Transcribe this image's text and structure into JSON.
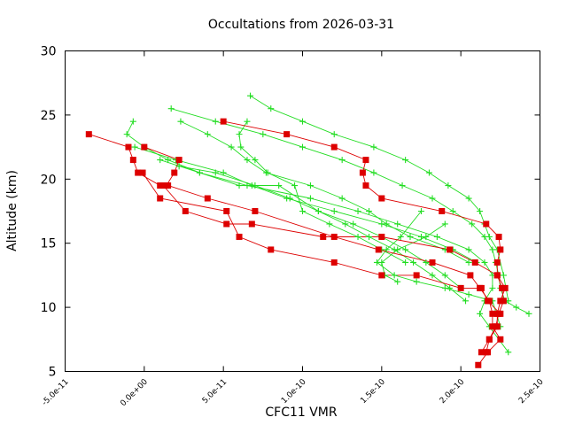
{
  "chart_data": {
    "type": "line",
    "title": "Occultations from 2026-03-31",
    "xlabel": "CFC11 VMR",
    "ylabel": "Altitude (km)",
    "xlim": [
      -5e-11,
      2.5e-10
    ],
    "ylim": [
      5,
      30
    ],
    "xticks": [
      -5e-11,
      0,
      5e-11,
      1e-10,
      1.5e-10,
      2e-10,
      2.5e-10
    ],
    "xtick_labels": [
      "-5.0e-11",
      "0.0e+00",
      "5.0e-11",
      "1.0e-10",
      "1.5e-10",
      "2.0e-10",
      "2.5e-10"
    ],
    "yticks": [
      5,
      10,
      15,
      20,
      25,
      30
    ],
    "ytick_labels": [
      "5",
      "10",
      "15",
      "20",
      "25",
      "30"
    ],
    "grid": false,
    "legend": "none",
    "colors": {
      "red_series": "#dd0000",
      "green_series": "#22dd22",
      "axes": "#000000"
    },
    "series": [
      {
        "name": "red-profile-1",
        "color": "red",
        "marker": "square",
        "x": [
          -3.5e-11,
          -1e-11,
          -7e-12,
          -4e-12,
          1e-11,
          1.5e-11,
          4e-11,
          7e-11,
          1.2e-10,
          1.48e-10,
          1.82e-10,
          2.06e-10,
          2.12e-10,
          2.18e-10,
          2.2e-10,
          2.2e-10,
          2.25e-10,
          2.17e-10,
          2.11e-10
        ],
        "y": [
          23.5,
          22.5,
          21.5,
          20.5,
          19.5,
          19.5,
          18.5,
          17.5,
          15.5,
          14.5,
          13.5,
          12.5,
          11.5,
          10.5,
          9.5,
          8.5,
          7.5,
          6.5,
          5.5
        ]
      },
      {
        "name": "red-profile-2",
        "color": "red",
        "marker": "square",
        "x": [
          0.0,
          2.2e-11,
          1.9e-11,
          1.4e-11,
          1.2e-11,
          2.6e-11,
          5.2e-11,
          6.8e-11,
          1.13e-10,
          1.5e-10,
          1.93e-10,
          2.09e-10,
          2.23e-10,
          2.28e-10,
          2.25e-10,
          2.23e-10,
          2.23e-10,
          2.18e-10,
          2.13e-10
        ],
        "y": [
          22.5,
          21.5,
          20.5,
          19.5,
          19.5,
          17.5,
          16.5,
          16.5,
          15.5,
          15.5,
          14.5,
          13.5,
          12.5,
          11.5,
          10.5,
          9.5,
          8.5,
          7.5,
          6.5
        ]
      },
      {
        "name": "red-profile-3",
        "color": "red",
        "marker": "square",
        "x": [
          5e-11,
          9e-11,
          1.2e-10,
          1.4e-10,
          1.38e-10,
          1.4e-10,
          1.5e-10,
          1.88e-10,
          2.16e-10,
          2.24e-10,
          2.25e-10,
          2.23e-10,
          2.23e-10,
          2.26e-10,
          2.27e-10,
          2.24e-10,
          2.22e-10,
          2.18e-10,
          2.16e-10
        ],
        "y": [
          24.5,
          23.5,
          22.5,
          21.5,
          20.5,
          19.5,
          18.5,
          17.5,
          16.5,
          15.5,
          14.5,
          13.5,
          12.5,
          11.5,
          10.5,
          9.5,
          8.5,
          7.5,
          6.5
        ]
      },
      {
        "name": "red-profile-4",
        "color": "red",
        "marker": "square",
        "x": [
          -1e-12,
          1e-11,
          5.2e-11,
          6e-11,
          8e-11,
          1.2e-10,
          1.5e-10,
          1.72e-10,
          2e-10,
          2.13e-10,
          2.17e-10,
          2.25e-10
        ],
        "y": [
          20.5,
          18.5,
          17.5,
          15.5,
          14.5,
          13.5,
          12.5,
          12.5,
          11.5,
          11.5,
          10.5,
          9.5
        ]
      },
      {
        "name": "green-profile-1",
        "color": "green",
        "marker": "plus",
        "x": [
          -7e-12,
          -1.1e-11,
          0.0,
          1.5e-11,
          3.5e-11,
          6.5e-11,
          1.05e-10,
          1.35e-10,
          1.6e-10,
          1.85e-10,
          2.05e-10,
          2.15e-10,
          2.2e-10,
          2.2e-10,
          2.15e-10,
          2.12e-10,
          2.18e-10,
          2.3e-10
        ],
        "y": [
          24.5,
          23.5,
          22.5,
          21.5,
          20.5,
          19.5,
          18.5,
          17.5,
          16.5,
          15.5,
          14.5,
          13.5,
          12.5,
          11.5,
          10.5,
          9.5,
          8.5,
          6.5
        ]
      },
      {
        "name": "green-profile-2",
        "color": "green",
        "marker": "plus",
        "x": [
          1.7e-11,
          4.5e-11,
          7.5e-11,
          1e-10,
          1.25e-10,
          1.45e-10,
          1.63e-10,
          1.82e-10,
          1.95e-10,
          2.07e-10,
          2.15e-10,
          2.2e-10,
          2.22e-10,
          2.24e-10,
          2.25e-10,
          2.28e-10,
          2.35e-10,
          2.43e-10
        ],
        "y": [
          25.5,
          24.5,
          23.5,
          22.5,
          21.5,
          20.5,
          19.5,
          18.5,
          17.5,
          16.5,
          15.5,
          14.5,
          13.5,
          12.5,
          11.5,
          10.5,
          10.0,
          9.5
        ]
      },
      {
        "name": "green-profile-3",
        "color": "green",
        "marker": "plus",
        "x": [
          6.7e-11,
          8e-11,
          1e-10,
          1.2e-10,
          1.45e-10,
          1.65e-10,
          1.8e-10,
          1.92e-10,
          2.05e-10,
          2.12e-10,
          2.15e-10,
          2.18e-10,
          2.23e-10,
          2.27e-10,
          2.3e-10
        ],
        "y": [
          26.5,
          25.5,
          24.5,
          23.5,
          22.5,
          21.5,
          20.5,
          19.5,
          18.5,
          17.5,
          16.5,
          15.5,
          14.5,
          12.5,
          10.5
        ]
      },
      {
        "name": "green-profile-4",
        "color": "green",
        "marker": "plus",
        "x": [
          2.3e-11,
          4e-11,
          5.5e-11,
          6.5e-11,
          7.7e-11,
          1.05e-10,
          1.25e-10,
          1.42e-10,
          1.53e-10,
          1.68e-10,
          1.9e-10,
          2.05e-10
        ],
        "y": [
          24.5,
          23.5,
          22.5,
          21.5,
          20.5,
          19.5,
          18.5,
          17.5,
          16.5,
          15.5,
          14.5,
          13.5
        ]
      },
      {
        "name": "green-profile-5",
        "color": "green",
        "marker": "plus",
        "x": [
          6.5e-11,
          6e-11,
          6.1e-11,
          7e-11,
          7.8e-11,
          9.5e-11,
          1e-10,
          1.17e-10,
          1.35e-10,
          1.5e-10,
          1.65e-10
        ],
        "y": [
          24.5,
          23.5,
          22.5,
          21.5,
          20.5,
          19.5,
          17.5,
          16.5,
          15.5,
          14.5,
          13.5
        ]
      },
      {
        "name": "green-profile-6",
        "color": "green",
        "marker": "plus",
        "x": [
          -6e-12,
          2e-11,
          5e-11,
          6.8e-11,
          9e-11,
          1.2e-10,
          1.5e-10,
          1.75e-10,
          1.95e-10,
          2.1e-10
        ],
        "y": [
          22.5,
          21.5,
          20.5,
          19.5,
          18.5,
          17.5,
          16.5,
          15.5,
          14.5,
          13.5
        ]
      },
      {
        "name": "green-profile-7",
        "color": "green",
        "marker": "plus",
        "x": [
          1e-11,
          3.5e-11,
          6e-11,
          8.5e-11,
          1.1e-10,
          1.32e-10,
          1.5e-10,
          1.65e-10,
          1.78e-10,
          1.9e-10,
          2e-10
        ],
        "y": [
          21.5,
          20.5,
          19.5,
          19.5,
          17.5,
          16.5,
          15.5,
          14.5,
          13.5,
          12.5,
          11.5
        ]
      },
      {
        "name": "green-profile-8",
        "color": "green",
        "marker": "plus",
        "x": [
          2.2e-11,
          4.5e-11,
          7e-11,
          9.2e-11,
          1.1e-10,
          1.27e-10,
          1.42e-10,
          1.58e-10,
          1.7e-10,
          1.82e-10,
          1.93e-10,
          2.03e-10
        ],
        "y": [
          21.0,
          20.5,
          19.5,
          18.5,
          17.5,
          16.5,
          15.5,
          14.5,
          13.5,
          12.5,
          11.5,
          10.5
        ]
      },
      {
        "name": "green-profile-9",
        "color": "green",
        "marker": "plus",
        "x": [
          1.75e-10,
          1.62e-10,
          1.53e-10,
          1.47e-10,
          1.58e-10,
          1.72e-10,
          1.9e-10,
          2.05e-10,
          2.2e-10,
          2.25e-10
        ],
        "y": [
          17.5,
          15.5,
          14.5,
          13.5,
          12.5,
          12.0,
          11.5,
          11.0,
          10.5,
          8.5
        ]
      },
      {
        "name": "green-profile-10",
        "color": "green",
        "marker": "plus",
        "x": [
          1.9e-10,
          1.78e-10,
          1.6e-10,
          1.5e-10,
          1.52e-10,
          1.6e-10
        ],
        "y": [
          16.5,
          15.5,
          14.5,
          13.5,
          12.5,
          12.0
        ]
      }
    ]
  }
}
